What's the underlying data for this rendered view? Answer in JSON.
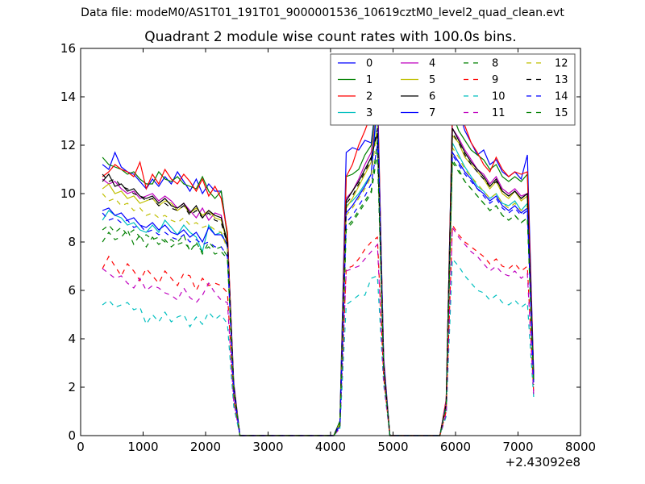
{
  "suptitle": "Data file: modeM0/AS1T01_191T01_9000001536_10619cztM0_level2_quad_clean.evt",
  "chart_data": {
    "type": "line",
    "title": "Quadrant 2 module wise count rates with 100.0s bins.",
    "xlabel": "",
    "ylabel": "",
    "x_offset_label": "+2.43092e8",
    "xlim": [
      0,
      8000
    ],
    "ylim": [
      0,
      16
    ],
    "xticks": [
      0,
      1000,
      2000,
      3000,
      4000,
      5000,
      6000,
      7000,
      8000
    ],
    "yticks": [
      0,
      2,
      4,
      6,
      8,
      10,
      12,
      14,
      16
    ],
    "grid": false,
    "legend_position": "top-right",
    "legend_columns": 4,
    "x": [
      350,
      450,
      550,
      650,
      750,
      850,
      950,
      1050,
      1150,
      1250,
      1350,
      1450,
      1550,
      1650,
      1750,
      1850,
      1950,
      2050,
      2150,
      2250,
      2350,
      2450,
      2550,
      2650,
      2750,
      2850,
      2950,
      3050,
      3150,
      3250,
      3350,
      3450,
      3550,
      3650,
      3750,
      3850,
      3950,
      4050,
      4150,
      4250,
      4350,
      4450,
      4550,
      4650,
      4750,
      4850,
      4950,
      5050,
      5150,
      5250,
      5350,
      5450,
      5550,
      5650,
      5750,
      5850,
      5950,
      6050,
      6150,
      6250,
      6350,
      6450,
      6550,
      6650,
      6750,
      6850,
      6950,
      7050,
      7150,
      7250
    ],
    "series": [
      {
        "name": "0",
        "color": "#0000ff",
        "dash": "solid",
        "values": [
          11.2,
          11.0,
          11.7,
          11.1,
          10.9,
          10.8,
          10.5,
          10.2,
          10.6,
          10.3,
          10.7,
          10.4,
          10.9,
          10.5,
          10.1,
          10.6,
          10.0,
          10.4,
          10.1,
          10.1,
          8.3,
          2.2,
          0,
          0,
          0,
          0,
          0,
          0,
          0,
          0,
          0,
          0,
          0,
          0,
          0,
          0,
          0,
          0,
          0.6,
          11.7,
          11.9,
          11.8,
          12.2,
          12.1,
          14.2,
          3.2,
          0,
          0,
          0,
          0,
          0,
          0,
          0,
          0,
          0,
          1.4,
          13.4,
          13.4,
          12.6,
          12.1,
          11.6,
          11.8,
          11.2,
          11.4,
          10.9,
          10.7,
          10.9,
          10.6,
          11.6,
          2.6
        ]
      },
      {
        "name": "1",
        "color": "#008000",
        "dash": "solid",
        "values": [
          11.5,
          11.2,
          11.1,
          11.0,
          10.8,
          10.9,
          10.6,
          10.4,
          10.4,
          10.9,
          10.6,
          10.5,
          10.7,
          10.4,
          10.3,
          10.2,
          10.7,
          10.1,
          9.8,
          10.1,
          8.2,
          2.0,
          0,
          0,
          0,
          0,
          0,
          0,
          0,
          0,
          0,
          0,
          0,
          0,
          0,
          0,
          0,
          0,
          0.6,
          10.7,
          10.8,
          11.0,
          11.6,
          12.0,
          14.0,
          3.0,
          0,
          0,
          0,
          0,
          0,
          0,
          0,
          0,
          0,
          1.4,
          13.3,
          12.6,
          12.2,
          11.8,
          11.6,
          11.4,
          11.0,
          11.2,
          10.7,
          10.5,
          10.7,
          10.5,
          10.8,
          2.4
        ]
      },
      {
        "name": "2",
        "color": "#ff0000",
        "dash": "solid",
        "values": [
          10.7,
          10.9,
          11.2,
          11.0,
          10.9,
          10.7,
          11.3,
          10.2,
          10.8,
          10.4,
          11.0,
          10.6,
          10.4,
          10.8,
          10.5,
          10.1,
          10.6,
          9.9,
          10.3,
          9.8,
          8.4,
          2.1,
          0,
          0,
          0,
          0,
          0,
          0,
          0,
          0,
          0,
          0,
          0,
          0,
          0,
          0,
          0,
          0,
          0.5,
          10.7,
          11.2,
          12.0,
          12.6,
          13.3,
          14.5,
          3.1,
          0,
          0,
          0,
          0,
          0,
          0,
          0,
          0,
          0,
          1.5,
          13.2,
          13.3,
          12.8,
          12.1,
          11.7,
          11.2,
          10.9,
          11.5,
          11.0,
          10.7,
          10.9,
          10.8,
          10.9,
          2.5
        ]
      },
      {
        "name": "3",
        "color": "#00bfbf",
        "dash": "solid",
        "values": [
          8.9,
          9.3,
          9.1,
          9.0,
          8.7,
          8.8,
          8.5,
          8.4,
          8.7,
          8.4,
          8.9,
          8.6,
          8.3,
          8.7,
          8.4,
          8.2,
          7.6,
          8.7,
          8.3,
          8.4,
          7.8,
          1.9,
          0,
          0,
          0,
          0,
          0,
          0,
          0,
          0,
          0,
          0,
          0,
          0,
          0,
          0,
          0,
          0,
          0.5,
          9.5,
          9.7,
          10.0,
          10.4,
          10.8,
          13.6,
          2.9,
          0,
          0,
          0,
          0,
          0,
          0,
          0,
          0,
          0,
          1.3,
          12.1,
          11.6,
          11.1,
          10.7,
          10.3,
          10.1,
          9.8,
          10.0,
          9.6,
          9.5,
          9.7,
          9.3,
          9.6,
          2.2
        ]
      },
      {
        "name": "4",
        "color": "#bf00bf",
        "dash": "solid",
        "values": [
          10.6,
          10.4,
          10.5,
          10.2,
          10.0,
          10.1,
          9.8,
          9.9,
          10.0,
          9.7,
          9.9,
          9.7,
          9.4,
          9.6,
          9.3,
          9.0,
          9.4,
          8.9,
          9.2,
          9.1,
          7.8,
          1.9,
          0,
          0,
          0,
          0,
          0,
          0,
          0,
          0,
          0,
          0,
          0,
          0,
          0,
          0,
          0,
          0,
          0.5,
          9.8,
          10.1,
          10.6,
          11.2,
          11.7,
          13.7,
          3.0,
          0,
          0,
          0,
          0,
          0,
          0,
          0,
          0,
          0,
          1.4,
          12.7,
          12.3,
          11.8,
          11.4,
          11.0,
          10.8,
          10.4,
          10.7,
          10.2,
          10.0,
          10.2,
          9.9,
          10.0,
          2.3
        ]
      },
      {
        "name": "5",
        "color": "#bfbf00",
        "dash": "solid",
        "values": [
          10.2,
          10.4,
          10.0,
          10.1,
          9.8,
          9.9,
          9.6,
          9.7,
          9.8,
          9.5,
          9.7,
          9.6,
          9.3,
          9.5,
          9.2,
          9.4,
          9.1,
          9.3,
          9.0,
          8.9,
          7.9,
          1.9,
          0,
          0,
          0,
          0,
          0,
          0,
          0,
          0,
          0,
          0,
          0,
          0,
          0,
          0,
          0,
          0,
          0.5,
          9.4,
          9.8,
          10.3,
          10.8,
          11.3,
          13.8,
          2.9,
          0,
          0,
          0,
          0,
          0,
          0,
          0,
          0,
          0,
          1.3,
          12.4,
          12.1,
          11.5,
          11.2,
          10.9,
          10.6,
          10.2,
          10.5,
          10.0,
          9.8,
          10.1,
          9.7,
          9.9,
          2.2
        ]
      },
      {
        "name": "6",
        "color": "#000000",
        "dash": "solid",
        "values": [
          10.5,
          10.8,
          10.3,
          10.4,
          10.1,
          10.2,
          9.9,
          9.8,
          9.9,
          9.6,
          9.8,
          9.5,
          9.4,
          9.6,
          9.2,
          9.5,
          9.0,
          9.3,
          9.1,
          9.0,
          8.0,
          2.0,
          0,
          0,
          0,
          0,
          0,
          0,
          0,
          0,
          0,
          0,
          0,
          0,
          0,
          0,
          0,
          0,
          0.5,
          9.7,
          10.1,
          10.5,
          11.0,
          11.5,
          12.5,
          2.9,
          0,
          0,
          0,
          0,
          0,
          0,
          0,
          0,
          0,
          1.3,
          12.7,
          12.2,
          11.7,
          11.3,
          11.0,
          10.7,
          10.3,
          10.6,
          10.1,
          9.9,
          10.1,
          9.8,
          10.0,
          2.3
        ]
      },
      {
        "name": "7",
        "color": "#0000ff",
        "dash": "solid",
        "values": [
          9.3,
          9.4,
          9.1,
          9.2,
          8.9,
          9.0,
          8.7,
          8.6,
          8.8,
          8.5,
          8.7,
          8.4,
          8.3,
          8.5,
          8.2,
          8.4,
          8.0,
          8.6,
          8.3,
          8.3,
          7.9,
          1.9,
          0,
          0,
          0,
          0,
          0,
          0,
          0,
          0,
          0,
          0,
          0,
          0,
          0,
          0,
          0,
          0,
          0.5,
          9.2,
          9.5,
          9.9,
          10.3,
          10.8,
          13.9,
          2.9,
          0,
          0,
          0,
          0,
          0,
          0,
          0,
          0,
          0,
          1.3,
          11.7,
          11.3,
          10.9,
          10.6,
          10.2,
          10.0,
          9.7,
          9.9,
          9.5,
          9.3,
          9.5,
          9.2,
          9.4,
          2.2
        ]
      },
      {
        "name": "8",
        "color": "#008000",
        "dash": "dashed",
        "values": [
          8.0,
          8.4,
          8.1,
          8.2,
          8.5,
          7.9,
          8.3,
          7.8,
          8.2,
          7.9,
          8.1,
          7.8,
          8.0,
          8.3,
          7.6,
          8.0,
          7.5,
          8.0,
          7.7,
          7.8,
          7.4,
          1.8,
          0,
          0,
          0,
          0,
          0,
          0,
          0,
          0,
          0,
          0,
          0,
          0,
          0,
          0,
          0,
          0,
          0.4,
          8.6,
          8.9,
          9.3,
          9.7,
          10.1,
          12.2,
          2.7,
          0,
          0,
          0,
          0,
          0,
          0,
          0,
          0,
          0,
          1.2,
          11.4,
          11.0,
          10.5,
          10.2,
          9.9,
          9.6,
          9.3,
          9.5,
          9.1,
          8.9,
          9.1,
          8.8,
          9.0,
          2.1
        ]
      },
      {
        "name": "9",
        "color": "#ff0000",
        "dash": "dashed",
        "values": [
          6.9,
          7.4,
          7.0,
          6.6,
          7.1,
          6.8,
          6.4,
          6.9,
          6.6,
          6.3,
          6.8,
          6.5,
          6.2,
          6.7,
          6.6,
          6.0,
          6.5,
          6.2,
          6.3,
          6.2,
          5.9,
          1.5,
          0,
          0,
          0,
          0,
          0,
          0,
          0,
          0,
          0,
          0,
          0,
          0,
          0,
          0,
          0,
          0,
          0.4,
          6.9,
          7.0,
          7.3,
          7.7,
          8.0,
          8.2,
          2.4,
          0,
          0,
          0,
          0,
          0,
          0,
          0,
          0,
          0,
          1.0,
          8.7,
          8.3,
          8.0,
          7.8,
          7.6,
          7.4,
          7.1,
          7.3,
          7.0,
          6.9,
          7.1,
          6.8,
          7.0,
          1.8
        ]
      },
      {
        "name": "10",
        "color": "#00bfbf",
        "dash": "dashed",
        "values": [
          5.4,
          5.6,
          5.3,
          5.4,
          5.5,
          5.2,
          5.3,
          4.6,
          5.0,
          4.7,
          5.1,
          4.7,
          4.9,
          5.0,
          4.5,
          4.9,
          4.6,
          5.1,
          4.8,
          5.0,
          4.6,
          1.2,
          0,
          0,
          0,
          0,
          0,
          0,
          0,
          0,
          0,
          0,
          0,
          0,
          0,
          0,
          0,
          0,
          0.3,
          5.4,
          5.6,
          5.8,
          5.8,
          6.5,
          6.6,
          2.1,
          0,
          0,
          0,
          0,
          0,
          0,
          0,
          0,
          0,
          0.8,
          7.3,
          7.0,
          6.6,
          6.3,
          6.0,
          5.9,
          5.6,
          5.8,
          5.5,
          5.4,
          5.6,
          5.3,
          5.5,
          1.6
        ]
      },
      {
        "name": "11",
        "color": "#bf00bf",
        "dash": "dashed",
        "values": [
          6.9,
          6.7,
          6.5,
          6.6,
          6.3,
          6.1,
          6.5,
          6.0,
          6.2,
          6.1,
          5.9,
          5.8,
          5.6,
          6.1,
          5.7,
          5.5,
          5.8,
          6.3,
          5.9,
          5.6,
          5.5,
          1.4,
          0,
          0,
          0,
          0,
          0,
          0,
          0,
          0,
          0,
          0,
          0,
          0,
          0,
          0,
          0,
          0,
          0.3,
          6.8,
          6.9,
          7.0,
          7.3,
          7.6,
          7.9,
          2.3,
          0,
          0,
          0,
          0,
          0,
          0,
          0,
          0,
          0,
          0.9,
          8.6,
          8.2,
          7.9,
          7.6,
          7.4,
          7.1,
          6.8,
          7.0,
          6.7,
          6.6,
          6.8,
          6.5,
          6.7,
          1.7
        ]
      },
      {
        "name": "12",
        "color": "#bfbf00",
        "dash": "dashed",
        "values": [
          10.0,
          9.7,
          9.8,
          9.5,
          9.6,
          9.3,
          9.4,
          9.1,
          9.2,
          9.0,
          9.1,
          8.9,
          8.8,
          9.0,
          8.7,
          8.8,
          8.6,
          8.7,
          8.5,
          8.4,
          7.7,
          1.9,
          0,
          0,
          0,
          0,
          0,
          0,
          0,
          0,
          0,
          0,
          0,
          0,
          0,
          0,
          0,
          0,
          0.5,
          9.1,
          9.4,
          9.8,
          10.2,
          10.7,
          12.8,
          2.8,
          0,
          0,
          0,
          0,
          0,
          0,
          0,
          0,
          0,
          1.3,
          11.9,
          11.5,
          11.0,
          10.7,
          10.4,
          10.1,
          9.8,
          10.0,
          9.6,
          9.4,
          9.6,
          9.3,
          9.5,
          2.2
        ]
      },
      {
        "name": "13",
        "color": "#000000",
        "dash": "dashed",
        "values": [
          10.8,
          10.5,
          10.6,
          10.3,
          10.2,
          10.0,
          9.9,
          9.7,
          9.8,
          9.5,
          9.6,
          9.4,
          9.3,
          9.5,
          9.1,
          9.3,
          9.0,
          9.2,
          8.9,
          8.8,
          7.9,
          2.0,
          0,
          0,
          0,
          0,
          0,
          0,
          0,
          0,
          0,
          0,
          0,
          0,
          0,
          0,
          0,
          0,
          0.5,
          9.6,
          9.9,
          10.4,
          10.9,
          11.4,
          12.7,
          2.9,
          0,
          0,
          0,
          0,
          0,
          0,
          0,
          0,
          0,
          1.3,
          12.5,
          12.1,
          11.6,
          11.2,
          10.9,
          10.6,
          10.3,
          10.5,
          10.1,
          9.9,
          10.1,
          9.8,
          10.0,
          2.3
        ]
      },
      {
        "name": "14",
        "color": "#0000ff",
        "dash": "dashed",
        "values": [
          9.2,
          8.9,
          9.0,
          8.8,
          8.9,
          8.6,
          8.7,
          8.4,
          8.5,
          8.3,
          8.4,
          8.2,
          8.1,
          8.3,
          8.0,
          8.1,
          7.9,
          8.0,
          7.8,
          7.8,
          7.4,
          1.8,
          0,
          0,
          0,
          0,
          0,
          0,
          0,
          0,
          0,
          0,
          0,
          0,
          0,
          0,
          0,
          0,
          0.4,
          8.8,
          9.1,
          9.5,
          9.9,
          10.4,
          12.0,
          2.8,
          0,
          0,
          0,
          0,
          0,
          0,
          0,
          0,
          0,
          1.2,
          11.6,
          11.2,
          10.8,
          10.5,
          10.2,
          9.9,
          9.6,
          9.8,
          9.4,
          9.2,
          9.4,
          9.1,
          9.3,
          2.2
        ]
      },
      {
        "name": "15",
        "color": "#008000",
        "dash": "dashed",
        "values": [
          8.5,
          8.7,
          8.4,
          8.6,
          8.3,
          8.5,
          8.2,
          8.3,
          8.1,
          8.2,
          8.0,
          8.1,
          7.9,
          8.0,
          7.7,
          7.9,
          7.6,
          7.8,
          7.5,
          7.6,
          7.3,
          1.8,
          0,
          0,
          0,
          0,
          0,
          0,
          0,
          0,
          0,
          0,
          0,
          0,
          0,
          0,
          0,
          0,
          0.4,
          8.5,
          8.8,
          9.2,
          9.6,
          10.0,
          11.7,
          2.7,
          0,
          0,
          0,
          0,
          0,
          0,
          0,
          0,
          0,
          1.2,
          11.3,
          10.9,
          10.5,
          10.2,
          9.9,
          9.6,
          9.3,
          9.5,
          9.1,
          8.9,
          9.1,
          8.8,
          9.0,
          2.1
        ]
      }
    ]
  }
}
